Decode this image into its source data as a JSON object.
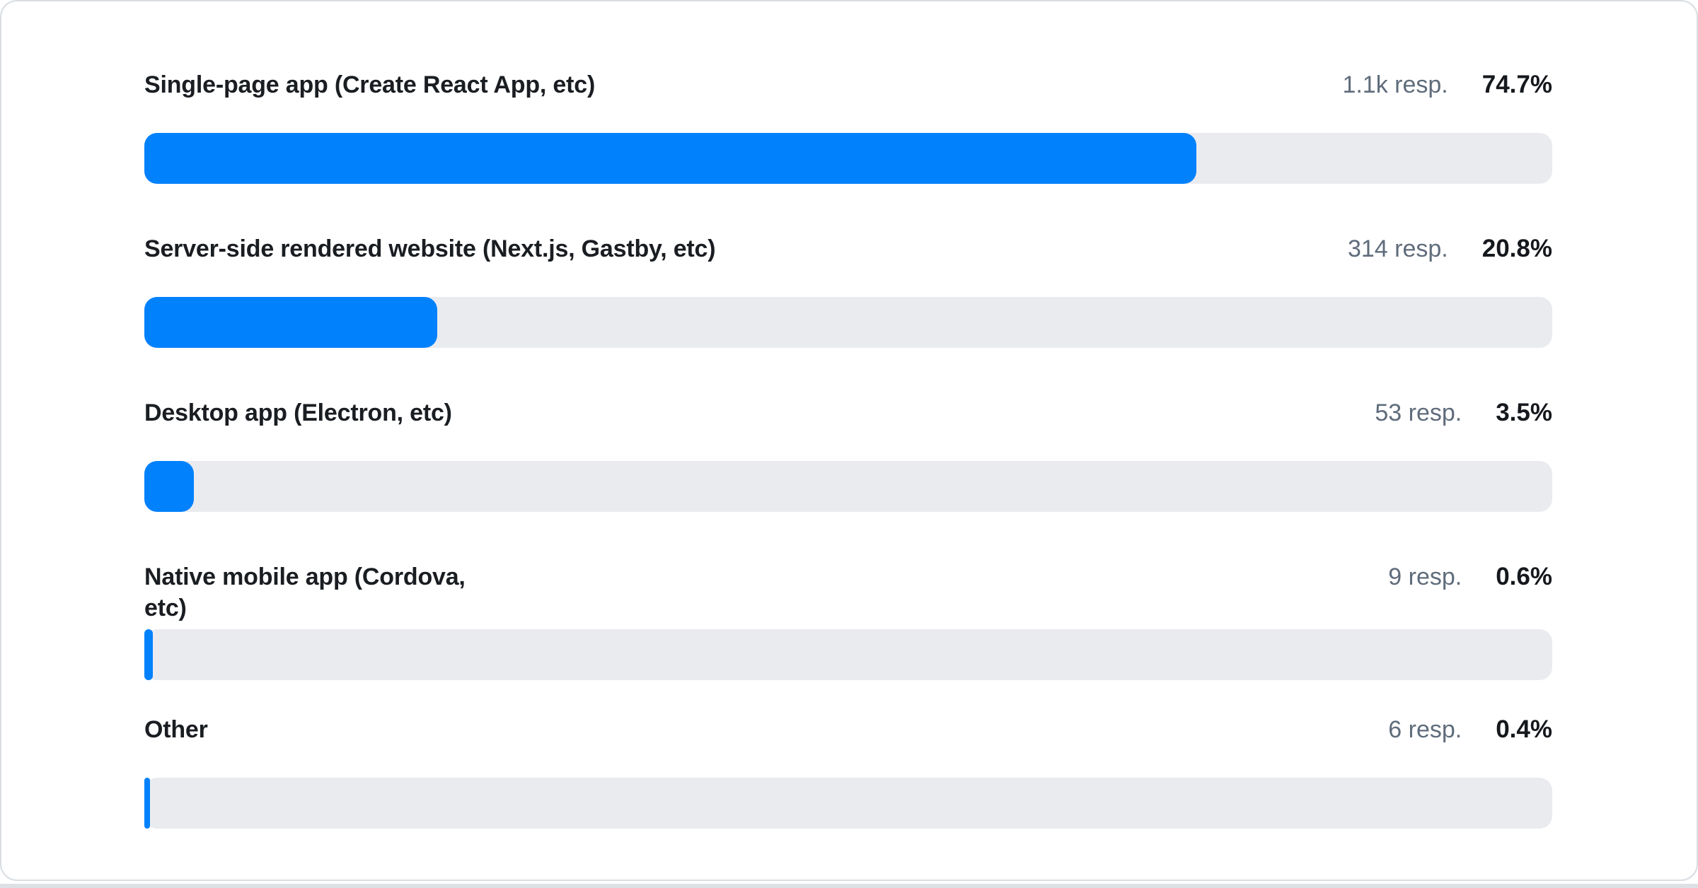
{
  "chart_data": {
    "type": "bar",
    "orientation": "horizontal",
    "title": "",
    "xlabel": "",
    "ylabel": "",
    "value_range": [
      0,
      100
    ],
    "grid": false,
    "legend": false,
    "categories": [
      "Single-page app (Create React App, etc)",
      "Server-side rendered website (Next.js, Gastby, etc)",
      "Desktop app (Electron, etc)",
      "Native mobile app (Cordova, etc)",
      "Other"
    ],
    "values": [
      74.7,
      20.8,
      3.5,
      0.6,
      0.4
    ],
    "rows": [
      {
        "label": "Single-page app (Create React App, etc)",
        "responses": "1.1k resp.",
        "value": 74.7,
        "value_label": "74.7%"
      },
      {
        "label": "Server-side rendered website (Next.js, Gastby, etc)",
        "responses": "314 resp.",
        "value": 20.8,
        "value_label": "20.8%"
      },
      {
        "label": "Desktop app (Electron, etc)",
        "responses": "53 resp.",
        "value": 3.5,
        "value_label": "3.5%"
      },
      {
        "label": "Native mobile app (Cordova, etc)",
        "responses": "9 resp.",
        "value": 0.6,
        "value_label": "0.6%"
      },
      {
        "label": "Other",
        "responses": "6 resp.",
        "value": 0.4,
        "value_label": "0.4%"
      }
    ],
    "colors": {
      "bar_fill": "#0281fc",
      "bar_track": "#e9ebef",
      "label_text": "#1a1d21",
      "responses_text": "#5f6c7b",
      "value_text": "#15181c",
      "card_border": "#d9dde2",
      "card_background": "#ffffff"
    }
  }
}
